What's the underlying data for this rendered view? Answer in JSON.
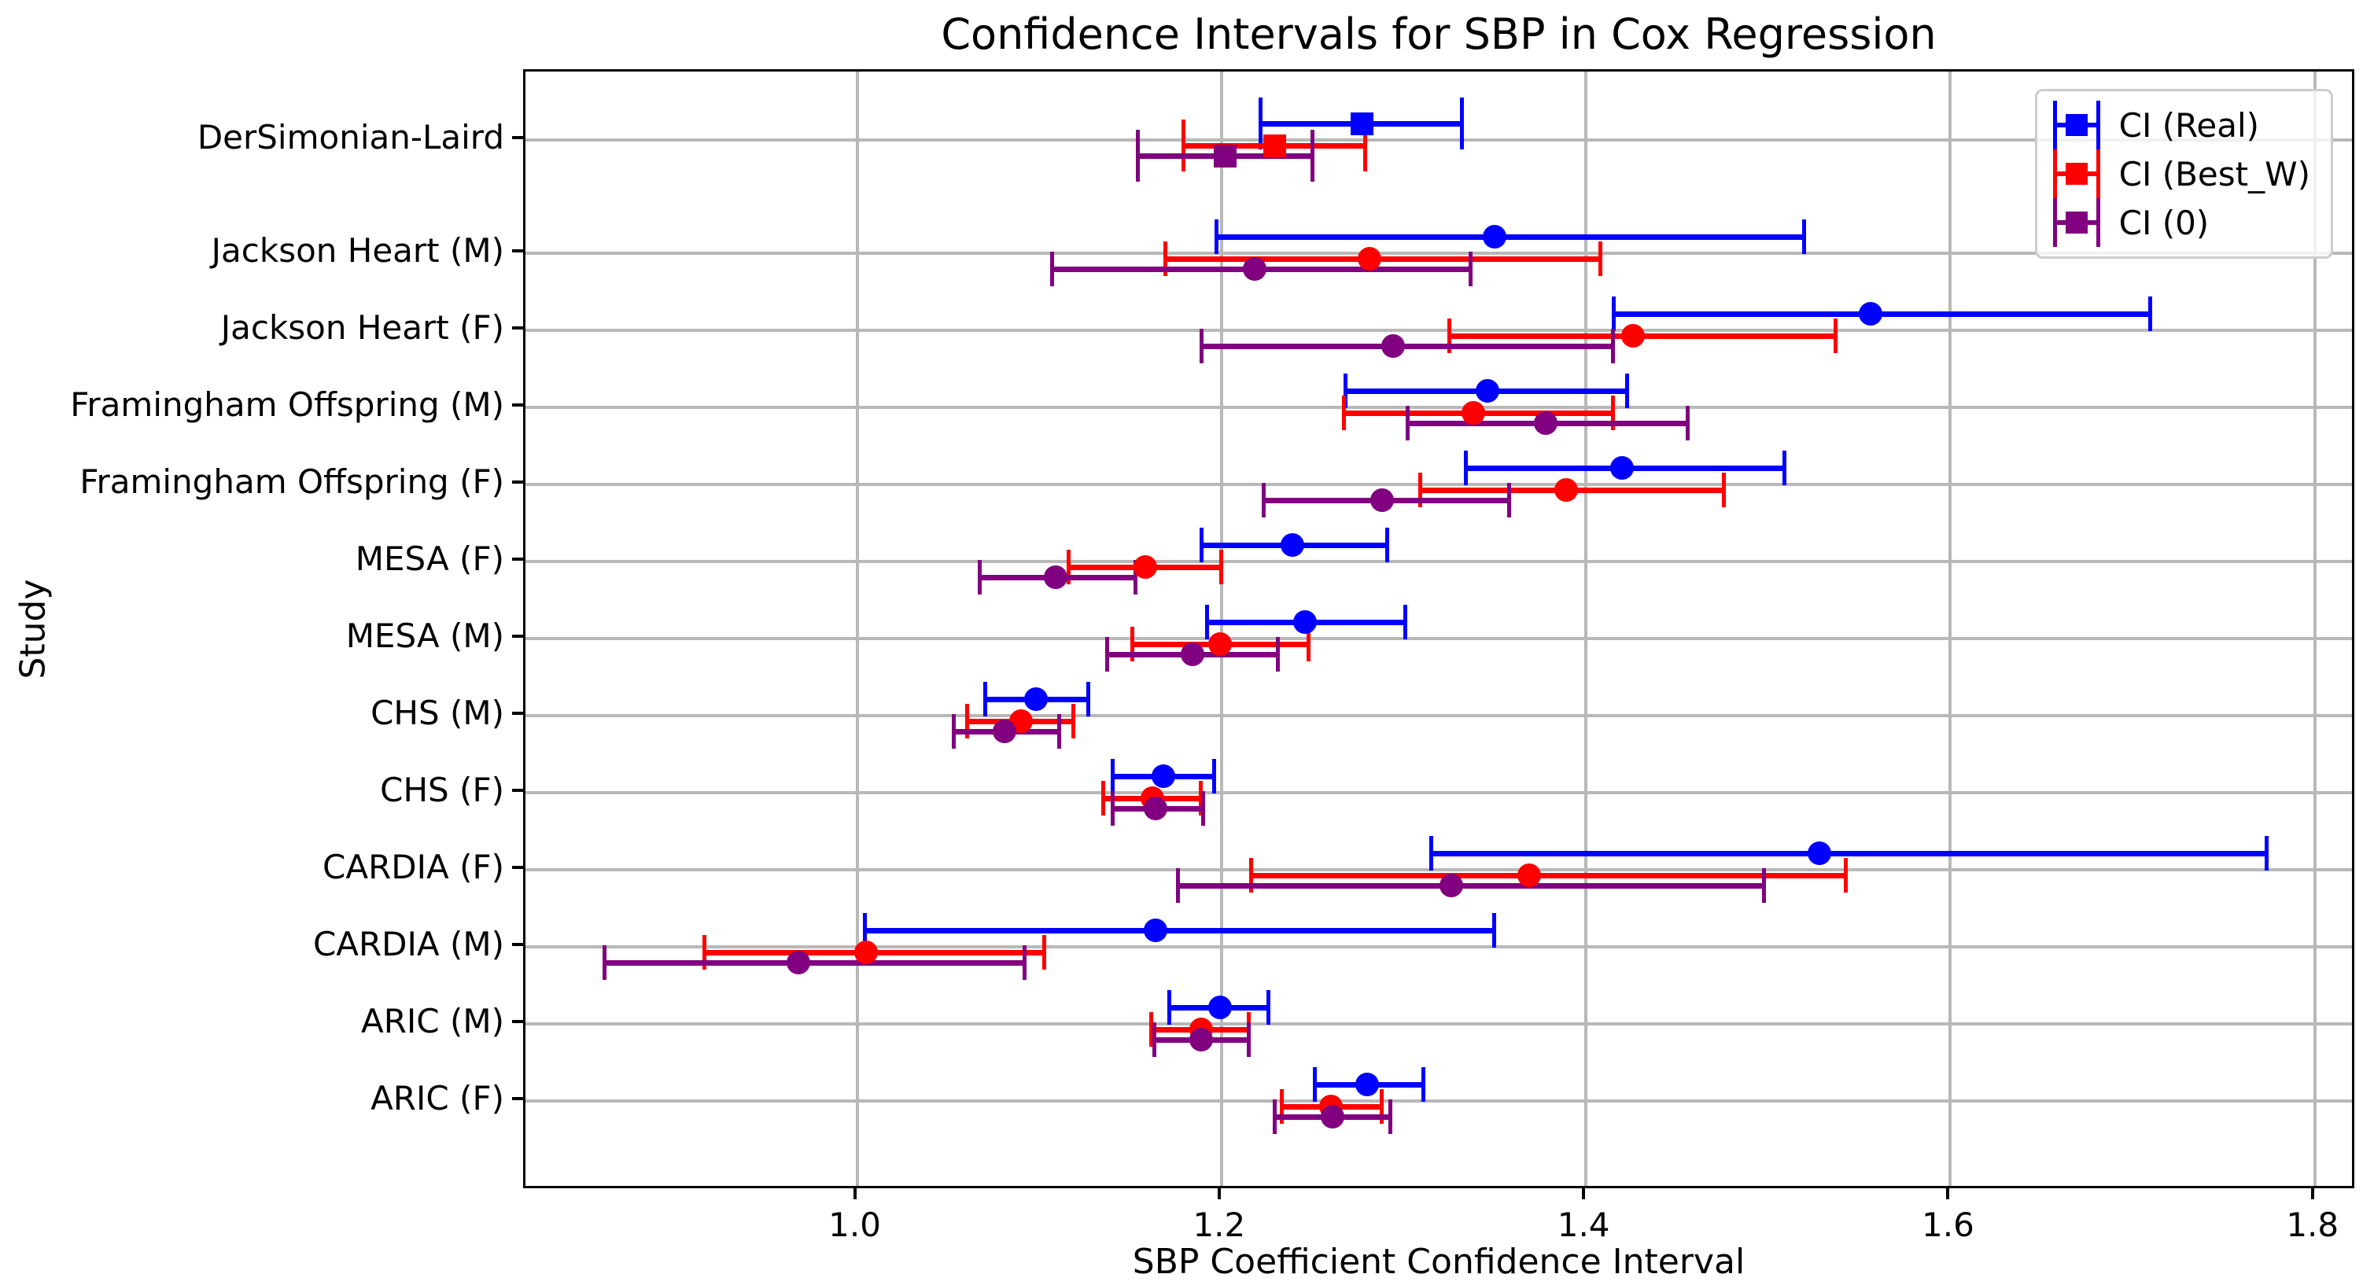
{
  "figure": {
    "background": "#ffffff"
  },
  "chart_data": {
    "type": "errorbar",
    "title": "Confidence Intervals for SBP in Cox Regression",
    "xlabel": "SBP Coefficient Confidence Interval",
    "ylabel": "Study",
    "xlim": [
      0.818,
      1.823
    ],
    "xticks": [
      1.0,
      1.2,
      1.4,
      1.6,
      1.8
    ],
    "xtick_labels": [
      "1.0",
      "1.2",
      "1.4",
      "1.6",
      "1.8"
    ],
    "grid": true,
    "grid_color": "#b8b8b8",
    "legend_position": "upper right",
    "series": [
      {
        "key": "real",
        "name": "CI (Real)",
        "color": "#0000ff"
      },
      {
        "key": "best_w",
        "name": "CI (Best_W)",
        "color": "#ff0000"
      },
      {
        "key": "zero",
        "name": "CI (0)",
        "color": "#800080"
      }
    ],
    "rows": [
      {
        "label": "DerSimonian-Laird",
        "marker": "square",
        "real": {
          "value": 1.277,
          "lo": 1.221,
          "hi": 1.332
        },
        "best_w": {
          "value": 1.229,
          "lo": 1.179,
          "hi": 1.279
        },
        "zero": {
          "value": 1.202,
          "lo": 1.154,
          "hi": 1.25
        }
      },
      {
        "label": "Jackson Heart (M)",
        "marker": "circle",
        "real": {
          "value": 1.35,
          "lo": 1.197,
          "hi": 1.52
        },
        "best_w": {
          "value": 1.281,
          "lo": 1.169,
          "hi": 1.408
        },
        "zero": {
          "value": 1.218,
          "lo": 1.107,
          "hi": 1.337
        }
      },
      {
        "label": "Jackson Heart (F)",
        "marker": "circle",
        "real": {
          "value": 1.556,
          "lo": 1.415,
          "hi": 1.71
        },
        "best_w": {
          "value": 1.426,
          "lo": 1.325,
          "hi": 1.537
        },
        "zero": {
          "value": 1.294,
          "lo": 1.189,
          "hi": 1.415
        }
      },
      {
        "label": "Framingham Offspring (M)",
        "marker": "circle",
        "real": {
          "value": 1.346,
          "lo": 1.268,
          "hi": 1.423
        },
        "best_w": {
          "value": 1.338,
          "lo": 1.267,
          "hi": 1.415
        },
        "zero": {
          "value": 1.378,
          "lo": 1.302,
          "hi": 1.456
        }
      },
      {
        "label": "Framingham Offspring (F)",
        "marker": "circle",
        "real": {
          "value": 1.42,
          "lo": 1.334,
          "hi": 1.509
        },
        "best_w": {
          "value": 1.389,
          "lo": 1.309,
          "hi": 1.476
        },
        "zero": {
          "value": 1.288,
          "lo": 1.223,
          "hi": 1.358
        }
      },
      {
        "label": "MESA (F)",
        "marker": "circle",
        "real": {
          "value": 1.239,
          "lo": 1.189,
          "hi": 1.291
        },
        "best_w": {
          "value": 1.158,
          "lo": 1.116,
          "hi": 1.2
        },
        "zero": {
          "value": 1.109,
          "lo": 1.067,
          "hi": 1.153
        }
      },
      {
        "label": "MESA (M)",
        "marker": "circle",
        "real": {
          "value": 1.246,
          "lo": 1.192,
          "hi": 1.301
        },
        "best_w": {
          "value": 1.199,
          "lo": 1.151,
          "hi": 1.248
        },
        "zero": {
          "value": 1.184,
          "lo": 1.137,
          "hi": 1.231
        }
      },
      {
        "label": "CHS (M)",
        "marker": "circle",
        "real": {
          "value": 1.098,
          "lo": 1.07,
          "hi": 1.127
        },
        "best_w": {
          "value": 1.09,
          "lo": 1.06,
          "hi": 1.119
        },
        "zero": {
          "value": 1.081,
          "lo": 1.053,
          "hi": 1.111
        }
      },
      {
        "label": "CHS (F)",
        "marker": "circle",
        "real": {
          "value": 1.168,
          "lo": 1.14,
          "hi": 1.196
        },
        "best_w": {
          "value": 1.162,
          "lo": 1.135,
          "hi": 1.189
        },
        "zero": {
          "value": 1.164,
          "lo": 1.14,
          "hi": 1.19
        }
      },
      {
        "label": "CARDIA (F)",
        "marker": "circle",
        "real": {
          "value": 1.528,
          "lo": 1.315,
          "hi": 1.774
        },
        "best_w": {
          "value": 1.369,
          "lo": 1.216,
          "hi": 1.543
        },
        "zero": {
          "value": 1.326,
          "lo": 1.176,
          "hi": 1.498
        }
      },
      {
        "label": "CARDIA (M)",
        "marker": "circle",
        "real": {
          "value": 1.164,
          "lo": 1.004,
          "hi": 1.35
        },
        "best_w": {
          "value": 1.005,
          "lo": 0.916,
          "hi": 1.103
        },
        "zero": {
          "value": 0.968,
          "lo": 0.861,
          "hi": 1.092
        }
      },
      {
        "label": "ARIC (M)",
        "marker": "circle",
        "real": {
          "value": 1.199,
          "lo": 1.171,
          "hi": 1.226
        },
        "best_w": {
          "value": 1.189,
          "lo": 1.161,
          "hi": 1.215
        },
        "zero": {
          "value": 1.189,
          "lo": 1.163,
          "hi": 1.215
        }
      },
      {
        "label": "ARIC (F)",
        "marker": "circle",
        "real": {
          "value": 1.28,
          "lo": 1.251,
          "hi": 1.311
        },
        "best_w": {
          "value": 1.26,
          "lo": 1.233,
          "hi": 1.288
        },
        "zero": {
          "value": 1.261,
          "lo": 1.229,
          "hi": 1.293
        }
      }
    ]
  }
}
